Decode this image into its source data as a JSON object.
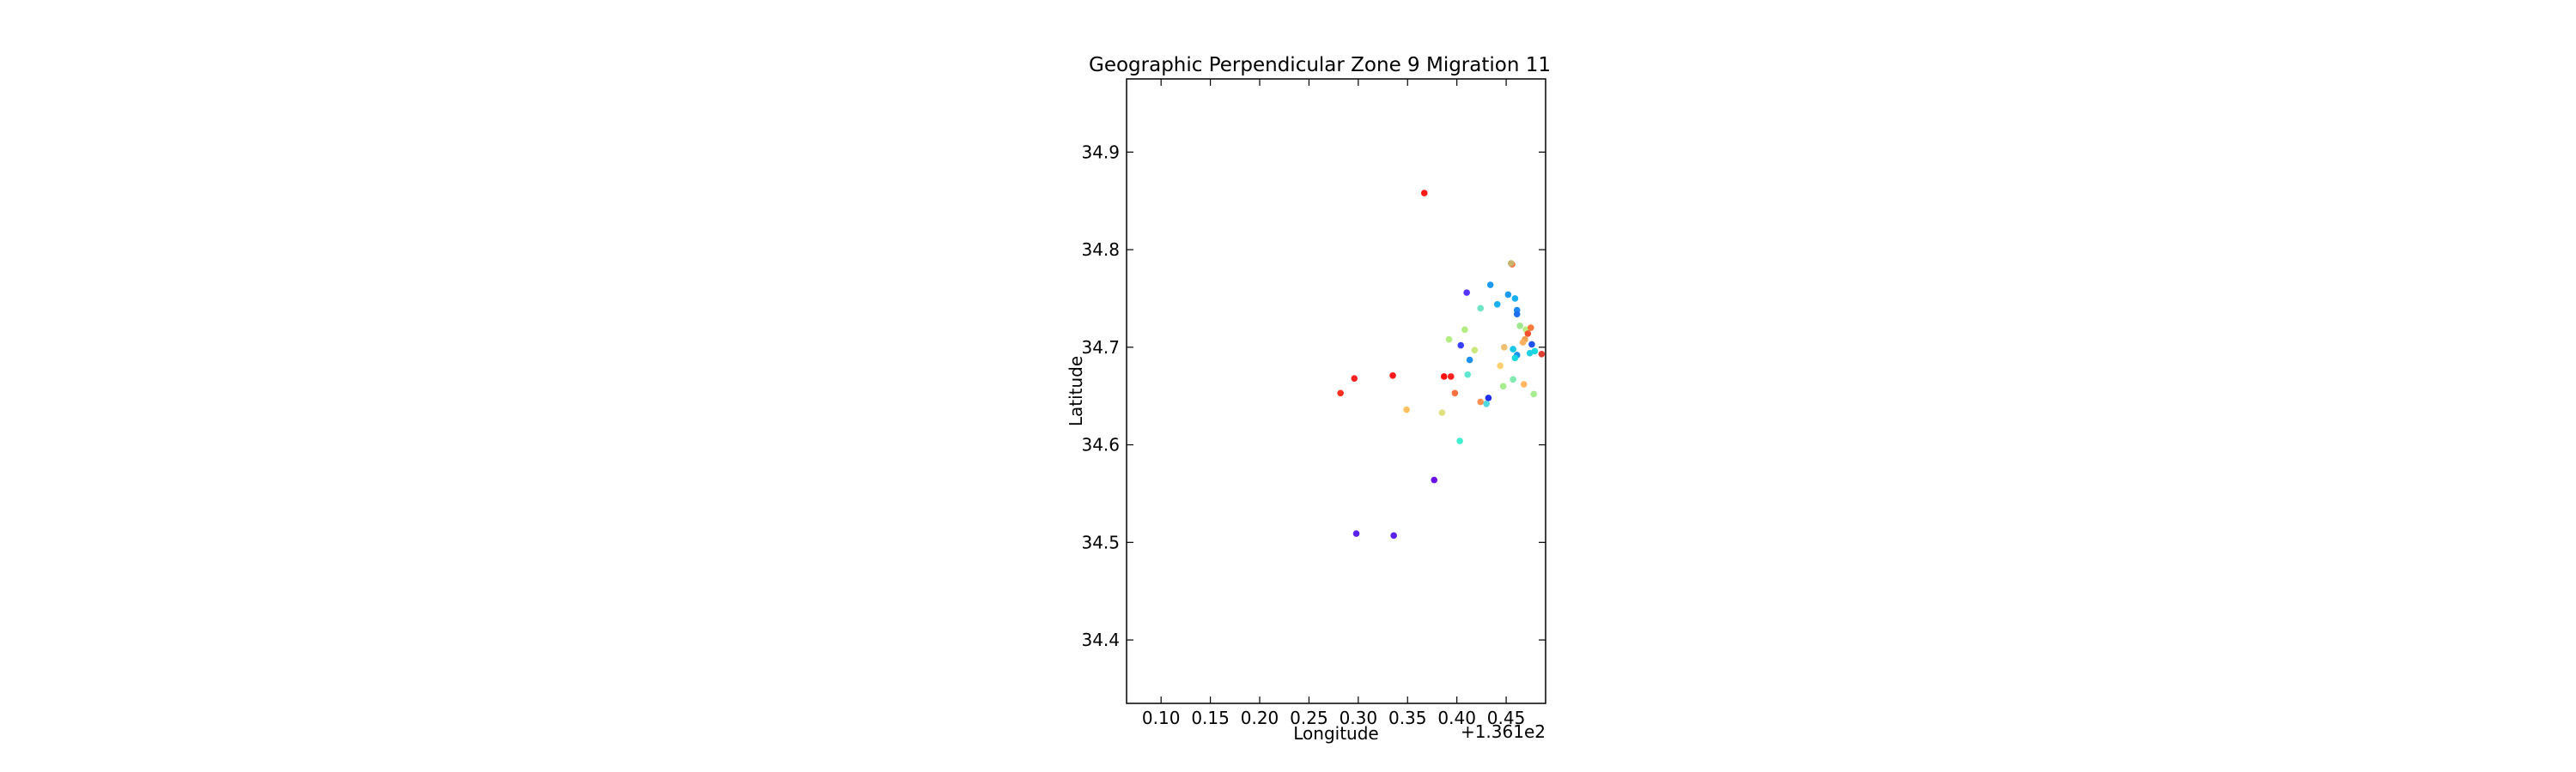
{
  "chart_data": {
    "type": "scatter",
    "title": "Geographic Perpendicular Zone 9 Migration 11",
    "xlabel": "Longitude",
    "ylabel": "Latitude",
    "x_offset_label": "+1.361e2",
    "xlim": [
      0.065,
      0.49
    ],
    "ylim": [
      34.335,
      34.975
    ],
    "xticks": [
      0.1,
      0.15,
      0.2,
      0.25,
      0.3,
      0.35,
      0.4,
      0.45
    ],
    "xtick_labels": [
      "0.10",
      "0.15",
      "0.20",
      "0.25",
      "0.30",
      "0.35",
      "0.40",
      "0.45"
    ],
    "yticks": [
      34.4,
      34.5,
      34.6,
      34.7,
      34.8,
      34.9
    ],
    "ytick_labels": [
      "34.4",
      "34.5",
      "34.6",
      "34.7",
      "34.8",
      "34.9"
    ],
    "grid": false,
    "points": [
      {
        "x": 0.367,
        "y": 34.858,
        "color": "#ff1a1a"
      },
      {
        "x": 0.456,
        "y": 34.785,
        "color": "#ff6a3d"
      },
      {
        "x": 0.455,
        "y": 34.786,
        "color": "#c8b46a"
      },
      {
        "x": 0.434,
        "y": 34.764,
        "color": "#1e9bf0"
      },
      {
        "x": 0.41,
        "y": 34.756,
        "color": "#5533ff"
      },
      {
        "x": 0.452,
        "y": 34.754,
        "color": "#1e9bf0"
      },
      {
        "x": 0.459,
        "y": 34.75,
        "color": "#1ab0f0"
      },
      {
        "x": 0.441,
        "y": 34.744,
        "color": "#1ab0f0"
      },
      {
        "x": 0.424,
        "y": 34.74,
        "color": "#6ee6c6"
      },
      {
        "x": 0.461,
        "y": 34.738,
        "color": "#1e88ee"
      },
      {
        "x": 0.461,
        "y": 34.734,
        "color": "#1e6ff0"
      },
      {
        "x": 0.464,
        "y": 34.722,
        "color": "#a0e890"
      },
      {
        "x": 0.47,
        "y": 34.718,
        "color": "#b8f080"
      },
      {
        "x": 0.475,
        "y": 34.72,
        "color": "#ff7a3a"
      },
      {
        "x": 0.408,
        "y": 34.718,
        "color": "#b4ec84"
      },
      {
        "x": 0.472,
        "y": 34.714,
        "color": "#ff5030"
      },
      {
        "x": 0.469,
        "y": 34.708,
        "color": "#f0a050"
      },
      {
        "x": 0.392,
        "y": 34.708,
        "color": "#b4ec84"
      },
      {
        "x": 0.467,
        "y": 34.705,
        "color": "#ffb060"
      },
      {
        "x": 0.476,
        "y": 34.703,
        "color": "#2050ee"
      },
      {
        "x": 0.404,
        "y": 34.702,
        "color": "#3a40ff"
      },
      {
        "x": 0.448,
        "y": 34.7,
        "color": "#f0c070"
      },
      {
        "x": 0.457,
        "y": 34.698,
        "color": "#18c8e8"
      },
      {
        "x": 0.418,
        "y": 34.697,
        "color": "#c8e87c"
      },
      {
        "x": 0.479,
        "y": 34.696,
        "color": "#18d8e0"
      },
      {
        "x": 0.474,
        "y": 34.694,
        "color": "#20d0e4"
      },
      {
        "x": 0.486,
        "y": 34.693,
        "color": "#e04030"
      },
      {
        "x": 0.461,
        "y": 34.692,
        "color": "#1a90f0"
      },
      {
        "x": 0.459,
        "y": 34.689,
        "color": "#1ad8e0"
      },
      {
        "x": 0.413,
        "y": 34.687,
        "color": "#1e90f0"
      },
      {
        "x": 0.444,
        "y": 34.681,
        "color": "#ffd070"
      },
      {
        "x": 0.411,
        "y": 34.672,
        "color": "#60e6d0"
      },
      {
        "x": 0.335,
        "y": 34.671,
        "color": "#ff1a1a"
      },
      {
        "x": 0.387,
        "y": 34.67,
        "color": "#ff1010"
      },
      {
        "x": 0.394,
        "y": 34.67,
        "color": "#ff2020"
      },
      {
        "x": 0.296,
        "y": 34.668,
        "color": "#ff2020"
      },
      {
        "x": 0.457,
        "y": 34.667,
        "color": "#80eab0"
      },
      {
        "x": 0.468,
        "y": 34.662,
        "color": "#ffb860"
      },
      {
        "x": 0.447,
        "y": 34.66,
        "color": "#a8ec90"
      },
      {
        "x": 0.478,
        "y": 34.652,
        "color": "#a8ec90"
      },
      {
        "x": 0.282,
        "y": 34.653,
        "color": "#ff3020"
      },
      {
        "x": 0.398,
        "y": 34.653,
        "color": "#ff7040"
      },
      {
        "x": 0.432,
        "y": 34.648,
        "color": "#2030ee"
      },
      {
        "x": 0.424,
        "y": 34.644,
        "color": "#ff9050"
      },
      {
        "x": 0.43,
        "y": 34.642,
        "color": "#50d8e0"
      },
      {
        "x": 0.349,
        "y": 34.636,
        "color": "#ffc060"
      },
      {
        "x": 0.385,
        "y": 34.633,
        "color": "#e0e07c"
      },
      {
        "x": 0.403,
        "y": 34.604,
        "color": "#40f0d0"
      },
      {
        "x": 0.377,
        "y": 34.564,
        "color": "#6a10e8"
      },
      {
        "x": 0.298,
        "y": 34.509,
        "color": "#5a20f0"
      },
      {
        "x": 0.336,
        "y": 34.507,
        "color": "#5a20f0"
      }
    ]
  }
}
